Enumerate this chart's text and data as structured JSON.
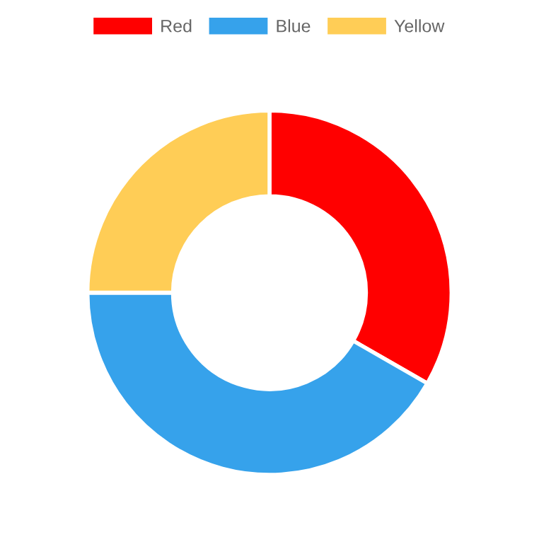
{
  "chart_data": {
    "type": "donut",
    "categories": [
      "Red",
      "Blue",
      "Yellow"
    ],
    "values": [
      33.3,
      41.7,
      25
    ],
    "colors": [
      "#ff0000",
      "#36a2eb",
      "#ffcd56"
    ],
    "legend": "top"
  }
}
